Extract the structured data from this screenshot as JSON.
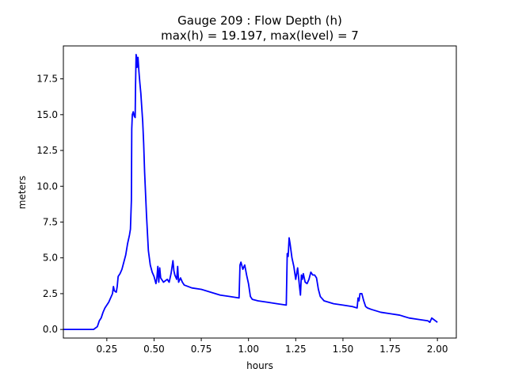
{
  "chart_data": {
    "type": "line",
    "title": "Gauge 209 : Flow Depth (h)",
    "subtitle": "max(h) =  19.197,    max(level) = 7",
    "xlabel": "hours",
    "ylabel": "meters",
    "xlim": [
      0.02,
      2.1
    ],
    "ylim": [
      -0.6,
      19.8
    ],
    "xticks": [
      0.25,
      0.5,
      0.75,
      1.0,
      1.25,
      1.5,
      1.75,
      2.0
    ],
    "xtick_labels": [
      "0.25",
      "0.50",
      "0.75",
      "1.00",
      "1.25",
      "1.50",
      "1.75",
      "2.00"
    ],
    "yticks": [
      0.0,
      2.5,
      5.0,
      7.5,
      10.0,
      12.5,
      15.0,
      17.5
    ],
    "ytick_labels": [
      "0.0",
      "2.5",
      "5.0",
      "7.5",
      "10.0",
      "12.5",
      "15.0",
      "17.5"
    ],
    "grid": false,
    "series": [
      {
        "color": "#0000ff",
        "x": [
          0.02,
          0.18,
          0.2,
          0.21,
          0.22,
          0.23,
          0.24,
          0.25,
          0.26,
          0.27,
          0.28,
          0.285,
          0.29,
          0.3,
          0.305,
          0.31,
          0.32,
          0.33,
          0.34,
          0.35,
          0.36,
          0.37,
          0.375,
          0.38,
          0.382,
          0.385,
          0.39,
          0.395,
          0.4,
          0.402,
          0.405,
          0.408,
          0.41,
          0.412,
          0.415,
          0.418,
          0.42,
          0.425,
          0.43,
          0.435,
          0.44,
          0.445,
          0.45,
          0.46,
          0.47,
          0.48,
          0.49,
          0.5,
          0.51,
          0.515,
          0.52,
          0.525,
          0.53,
          0.535,
          0.54,
          0.545,
          0.55,
          0.56,
          0.57,
          0.58,
          0.59,
          0.6,
          0.605,
          0.61,
          0.62,
          0.625,
          0.63,
          0.64,
          0.65,
          0.66,
          0.7,
          0.75,
          0.8,
          0.85,
          0.9,
          0.95,
          0.955,
          0.96,
          0.97,
          0.98,
          0.99,
          1.0,
          1.01,
          1.02,
          1.05,
          1.1,
          1.15,
          1.2,
          1.205,
          1.21,
          1.215,
          1.22,
          1.23,
          1.24,
          1.25,
          1.26,
          1.27,
          1.275,
          1.28,
          1.285,
          1.29,
          1.3,
          1.31,
          1.32,
          1.33,
          1.34,
          1.35,
          1.36,
          1.37,
          1.38,
          1.4,
          1.45,
          1.5,
          1.55,
          1.575,
          1.58,
          1.585,
          1.59,
          1.6,
          1.61,
          1.62,
          1.63,
          1.65,
          1.7,
          1.75,
          1.8,
          1.85,
          1.9,
          1.95,
          1.96,
          1.97,
          1.98,
          1.99,
          2.0
        ],
        "values": [
          0.0,
          0.0,
          0.2,
          0.6,
          0.8,
          1.2,
          1.5,
          1.7,
          1.9,
          2.2,
          2.5,
          3.0,
          2.7,
          2.6,
          3.0,
          3.7,
          3.9,
          4.2,
          4.7,
          5.2,
          6.0,
          6.6,
          7.0,
          9.0,
          14.0,
          15.0,
          15.2,
          14.9,
          14.8,
          17.0,
          19.2,
          19.0,
          18.3,
          18.6,
          19.0,
          18.4,
          18.0,
          17.2,
          16.5,
          15.5,
          14.5,
          13.0,
          11.0,
          8.0,
          5.5,
          4.5,
          4.0,
          3.7,
          3.2,
          3.6,
          4.4,
          3.3,
          4.3,
          3.6,
          3.5,
          3.4,
          3.3,
          3.4,
          3.5,
          3.3,
          3.9,
          4.8,
          4.1,
          3.8,
          3.5,
          4.4,
          3.3,
          3.6,
          3.3,
          3.1,
          2.9,
          2.8,
          2.6,
          2.4,
          2.3,
          2.2,
          4.5,
          4.7,
          4.2,
          4.5,
          3.8,
          3.2,
          2.3,
          2.1,
          2.0,
          1.9,
          1.8,
          1.7,
          5.3,
          5.1,
          6.4,
          6.0,
          5.0,
          4.4,
          3.5,
          4.3,
          3.0,
          2.4,
          3.8,
          3.5,
          3.9,
          3.3,
          3.2,
          3.5,
          4.0,
          3.8,
          3.8,
          3.6,
          2.8,
          2.3,
          2.0,
          1.8,
          1.7,
          1.6,
          1.5,
          2.2,
          2.0,
          2.5,
          2.5,
          2.0,
          1.6,
          1.5,
          1.4,
          1.2,
          1.1,
          1.0,
          0.8,
          0.7,
          0.6,
          0.5,
          0.8,
          0.7,
          0.6,
          0.5
        ]
      }
    ]
  }
}
